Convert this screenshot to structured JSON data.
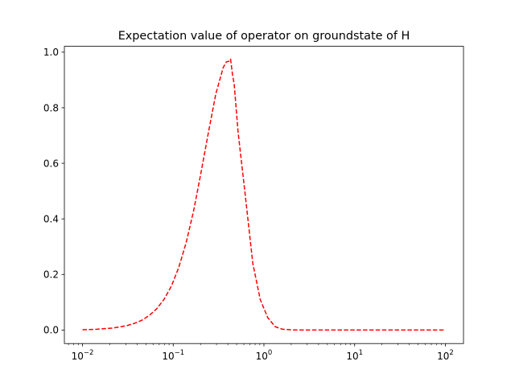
{
  "chart_data": {
    "type": "line",
    "title": "Expectation value of operator on groundstate of H",
    "xlabel": "",
    "ylabel": "",
    "xscale": "log",
    "xlim": [
      0.00631,
      158.5
    ],
    "ylim": [
      -0.0486,
      1.021
    ],
    "grid": false,
    "x_ticks": [
      {
        "value": 0.01,
        "base": "10",
        "exp": "−2"
      },
      {
        "value": 0.1,
        "base": "10",
        "exp": "−1"
      },
      {
        "value": 1,
        "base": "10",
        "exp": "0"
      },
      {
        "value": 10,
        "base": "10",
        "exp": "1"
      },
      {
        "value": 100,
        "base": "10",
        "exp": "2"
      }
    ],
    "y_ticks": [
      {
        "value": 0.0,
        "label": "0.0"
      },
      {
        "value": 0.2,
        "label": "0.2"
      },
      {
        "value": 0.4,
        "label": "0.4"
      },
      {
        "value": 0.6,
        "label": "0.6"
      },
      {
        "value": 0.8,
        "label": "0.8"
      },
      {
        "value": 1.0,
        "label": "1.0"
      }
    ],
    "series": [
      {
        "color": "#ff0000",
        "linestyle": "dashed",
        "x": [
          0.01,
          0.0121,
          0.0146,
          0.0176,
          0.0212,
          0.0256,
          0.0309,
          0.0373,
          0.045,
          0.0543,
          0.0655,
          0.0791,
          0.0954,
          0.115,
          0.139,
          0.168,
          0.202,
          0.244,
          0.295,
          0.356,
          0.385,
          0.41,
          0.429,
          0.45,
          0.47,
          0.518,
          0.625,
          0.754,
          0.91,
          1.1,
          1.33,
          1.6,
          1.93,
          2.33,
          2.81,
          3.39,
          4.09,
          4.94,
          5.96,
          7.2,
          8.69,
          10.5,
          12.6,
          15.3,
          18.4,
          22.2,
          26.8,
          32.4,
          39.1,
          47.1,
          56.9,
          68.7,
          82.9,
          100
        ],
        "y": [
          0.001,
          0.002,
          0.003,
          0.005,
          0.007,
          0.011,
          0.016,
          0.024,
          0.035,
          0.052,
          0.076,
          0.11,
          0.158,
          0.225,
          0.315,
          0.43,
          0.565,
          0.71,
          0.85,
          0.945,
          0.965,
          0.967,
          0.975,
          0.92,
          0.885,
          0.715,
          0.48,
          0.24,
          0.11,
          0.045,
          0.012,
          0.003,
          0.001,
          0,
          0,
          0,
          0,
          0,
          0,
          0,
          0,
          0,
          0,
          0,
          0,
          0,
          0,
          0,
          0,
          0,
          0,
          0,
          0,
          0
        ]
      }
    ]
  }
}
